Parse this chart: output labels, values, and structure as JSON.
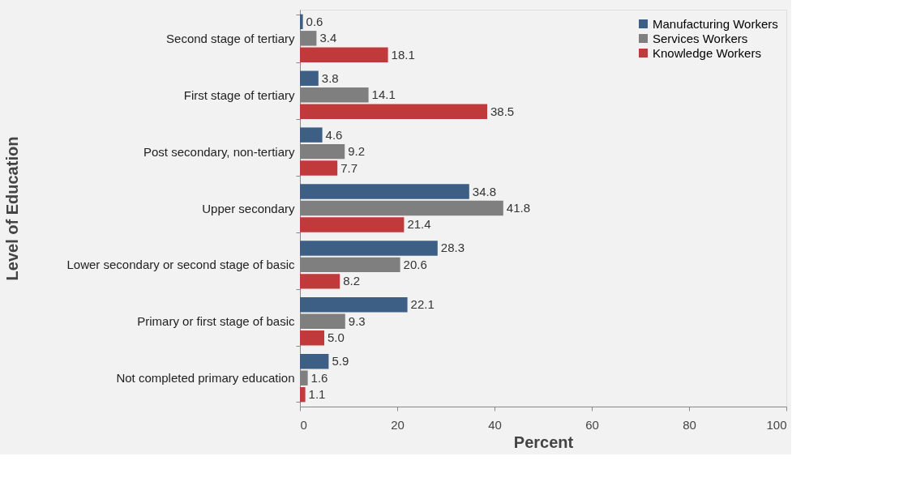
{
  "chart_data": {
    "type": "bar",
    "orientation": "horizontal",
    "xlabel": "Percent",
    "ylabel": "Level of Education",
    "categories": [
      "Second stage of tertiary",
      "First stage of tertiary",
      "Post secondary, non-tertiary",
      "Upper secondary",
      "Lower secondary or second stage of basic",
      "Primary or first stage of basic",
      "Not completed primary education"
    ],
    "series": [
      {
        "name": "Manufacturing Workers",
        "color": "#3d5f86",
        "values": [
          0.6,
          3.8,
          4.6,
          34.8,
          28.3,
          22.1,
          5.9
        ]
      },
      {
        "name": "Services Workers",
        "color": "#7f7f7f",
        "values": [
          3.4,
          14.1,
          9.2,
          41.8,
          20.6,
          9.3,
          1.6
        ]
      },
      {
        "name": "Knowledge Workers",
        "color": "#c0393b",
        "values": [
          18.1,
          38.5,
          7.7,
          21.4,
          8.2,
          5.0,
          1.1
        ]
      }
    ],
    "xlim": [
      0,
      100
    ],
    "xticks": [
      0,
      20,
      40,
      60,
      80,
      100
    ],
    "grid": false,
    "legend": "top right",
    "value_labels": [
      [
        "0.6",
        "3.8",
        "4.6",
        "34.8",
        "28.3",
        "22.1",
        "5.9"
      ],
      [
        "3.4",
        "14.1",
        "9.2",
        "41.8",
        "20.6",
        "9.3",
        "1.6"
      ],
      [
        "18.1",
        "38.5",
        "7.7",
        "21.4",
        "8.2",
        "5.0",
        "1.1"
      ]
    ]
  }
}
